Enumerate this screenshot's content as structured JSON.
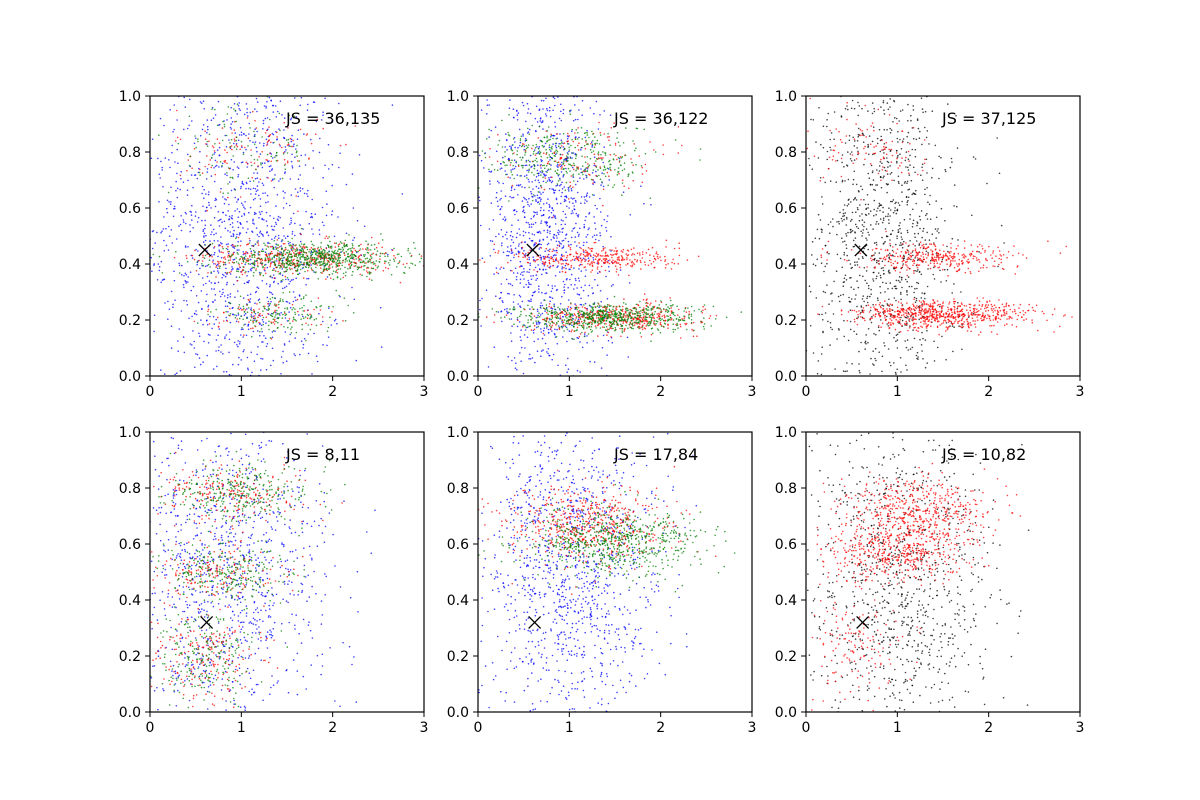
{
  "figure": {
    "background": "#ffffff"
  },
  "chart_data": [
    {
      "type": "scatter",
      "annotation": "JS = 36,135",
      "xlim": [
        0,
        3
      ],
      "ylim": [
        0,
        1
      ],
      "xticks": [
        "0",
        "1",
        "2",
        "3"
      ],
      "yticks": [
        "0.0",
        "0.2",
        "0.4",
        "0.6",
        "0.8",
        "1.0"
      ],
      "marker": {
        "x": 0.6,
        "y": 0.45,
        "symbol": "x",
        "color": "#000000"
      },
      "series": [
        {
          "color": "#0000ff",
          "clusters": [
            {
              "n": 1400,
              "cx": 1.0,
              "cy": 0.5,
              "sx": 0.55,
              "sy": 0.35
            }
          ]
        },
        {
          "color": "#ff0000",
          "clusters": [
            {
              "n": 420,
              "cx": 1.6,
              "cy": 0.42,
              "sx": 0.55,
              "sy": 0.03
            },
            {
              "n": 120,
              "cx": 1.1,
              "cy": 0.8,
              "sx": 0.4,
              "sy": 0.08
            },
            {
              "n": 80,
              "cx": 1.3,
              "cy": 0.22,
              "sx": 0.35,
              "sy": 0.03
            }
          ]
        },
        {
          "color": "#008000",
          "clusters": [
            {
              "n": 700,
              "cx": 1.8,
              "cy": 0.42,
              "sx": 0.55,
              "sy": 0.03
            },
            {
              "n": 160,
              "cx": 1.4,
              "cy": 0.22,
              "sx": 0.35,
              "sy": 0.03
            },
            {
              "n": 100,
              "cx": 1.0,
              "cy": 0.8,
              "sx": 0.4,
              "sy": 0.08
            }
          ]
        }
      ]
    },
    {
      "type": "scatter",
      "annotation": "JS = 36,122",
      "xlim": [
        0,
        3
      ],
      "ylim": [
        0,
        1
      ],
      "xticks": [
        "0",
        "1",
        "2",
        "3"
      ],
      "yticks": [
        "0.0",
        "0.2",
        "0.4",
        "0.6",
        "0.8",
        "1.0"
      ],
      "marker": {
        "x": 0.6,
        "y": 0.45,
        "symbol": "x",
        "color": "#000000"
      },
      "series": [
        {
          "color": "#0000ff",
          "clusters": [
            {
              "n": 1300,
              "cx": 0.75,
              "cy": 0.5,
              "sx": 0.35,
              "sy": 0.32
            }
          ]
        },
        {
          "color": "#ff0000",
          "clusters": [
            {
              "n": 450,
              "cx": 1.5,
              "cy": 0.21,
              "sx": 0.45,
              "sy": 0.025
            },
            {
              "n": 350,
              "cx": 1.3,
              "cy": 0.42,
              "sx": 0.45,
              "sy": 0.025
            },
            {
              "n": 140,
              "cx": 1.1,
              "cy": 0.78,
              "sx": 0.4,
              "sy": 0.06
            }
          ]
        },
        {
          "color": "#008000",
          "clusters": [
            {
              "n": 650,
              "cx": 1.4,
              "cy": 0.21,
              "sx": 0.5,
              "sy": 0.025
            },
            {
              "n": 350,
              "cx": 1.0,
              "cy": 0.78,
              "sx": 0.45,
              "sy": 0.06
            }
          ]
        }
      ]
    },
    {
      "type": "scatter",
      "annotation": "JS = 37,125",
      "xlim": [
        0,
        3
      ],
      "ylim": [
        0,
        1
      ],
      "xticks": [
        "0",
        "1",
        "2",
        "3"
      ],
      "yticks": [
        "0.0",
        "0.2",
        "0.4",
        "0.6",
        "0.8",
        "1.0"
      ],
      "marker": {
        "x": 0.6,
        "y": 0.45,
        "symbol": "x",
        "color": "#000000"
      },
      "series": [
        {
          "color": "#000000",
          "clusters": [
            {
              "n": 1100,
              "cx": 0.85,
              "cy": 0.5,
              "sx": 0.4,
              "sy": 0.32
            }
          ]
        },
        {
          "color": "#ff0000",
          "clusters": [
            {
              "n": 700,
              "cx": 1.5,
              "cy": 0.22,
              "sx": 0.5,
              "sy": 0.025
            },
            {
              "n": 350,
              "cx": 1.4,
              "cy": 0.42,
              "sx": 0.45,
              "sy": 0.025
            },
            {
              "n": 100,
              "cx": 0.8,
              "cy": 0.8,
              "sx": 0.35,
              "sy": 0.06
            }
          ]
        }
      ]
    },
    {
      "type": "scatter",
      "annotation": "JS = 8,11",
      "xlim": [
        0,
        3
      ],
      "ylim": [
        0,
        1
      ],
      "xticks": [
        "0",
        "1",
        "2",
        "3"
      ],
      "yticks": [
        "0.0",
        "0.2",
        "0.4",
        "0.6",
        "0.8",
        "1.0"
      ],
      "marker": {
        "x": 0.62,
        "y": 0.32,
        "symbol": "x",
        "color": "#000000"
      },
      "series": [
        {
          "color": "#0000ff",
          "clusters": [
            {
              "n": 1100,
              "cx": 0.85,
              "cy": 0.5,
              "sx": 0.55,
              "sy": 0.32
            }
          ]
        },
        {
          "color": "#ff0000",
          "clusters": [
            {
              "n": 220,
              "cx": 0.9,
              "cy": 0.78,
              "sx": 0.4,
              "sy": 0.05
            },
            {
              "n": 180,
              "cx": 0.7,
              "cy": 0.5,
              "sx": 0.35,
              "sy": 0.05
            },
            {
              "n": 200,
              "cx": 0.6,
              "cy": 0.2,
              "sx": 0.3,
              "sy": 0.08
            }
          ]
        },
        {
          "color": "#008000",
          "clusters": [
            {
              "n": 300,
              "cx": 1.0,
              "cy": 0.78,
              "sx": 0.4,
              "sy": 0.05
            },
            {
              "n": 250,
              "cx": 0.8,
              "cy": 0.5,
              "sx": 0.35,
              "sy": 0.05
            },
            {
              "n": 220,
              "cx": 0.6,
              "cy": 0.2,
              "sx": 0.3,
              "sy": 0.08
            }
          ]
        }
      ]
    },
    {
      "type": "scatter",
      "annotation": "JS = 17,84",
      "xlim": [
        0,
        3
      ],
      "ylim": [
        0,
        1
      ],
      "xticks": [
        "0",
        "1",
        "2",
        "3"
      ],
      "yticks": [
        "0.0",
        "0.2",
        "0.4",
        "0.6",
        "0.8",
        "1.0"
      ],
      "marker": {
        "x": 0.62,
        "y": 0.32,
        "symbol": "x",
        "color": "#000000"
      },
      "series": [
        {
          "color": "#0000ff",
          "clusters": [
            {
              "n": 1200,
              "cx": 1.0,
              "cy": 0.5,
              "sx": 0.5,
              "sy": 0.3
            }
          ]
        },
        {
          "color": "#ff0000",
          "clusters": [
            {
              "n": 550,
              "cx": 1.2,
              "cy": 0.66,
              "sx": 0.45,
              "sy": 0.07
            }
          ]
        },
        {
          "color": "#008000",
          "clusters": [
            {
              "n": 650,
              "cx": 1.5,
              "cy": 0.61,
              "sx": 0.5,
              "sy": 0.06
            }
          ]
        }
      ]
    },
    {
      "type": "scatter",
      "annotation": "JS = 10,82",
      "xlim": [
        0,
        3
      ],
      "ylim": [
        0,
        1
      ],
      "xticks": [
        "0",
        "1",
        "2",
        "3"
      ],
      "yticks": [
        "0.0",
        "0.2",
        "0.4",
        "0.6",
        "0.8",
        "1.0"
      ],
      "marker": {
        "x": 0.62,
        "y": 0.32,
        "symbol": "x",
        "color": "#000000"
      },
      "series": [
        {
          "color": "#000000",
          "clusters": [
            {
              "n": 1000,
              "cx": 1.05,
              "cy": 0.45,
              "sx": 0.5,
              "sy": 0.3
            }
          ]
        },
        {
          "color": "#ff0000",
          "clusters": [
            {
              "n": 500,
              "cx": 1.2,
              "cy": 0.72,
              "sx": 0.4,
              "sy": 0.06
            },
            {
              "n": 450,
              "cx": 1.0,
              "cy": 0.57,
              "sx": 0.4,
              "sy": 0.05
            },
            {
              "n": 150,
              "cx": 0.6,
              "cy": 0.25,
              "sx": 0.3,
              "sy": 0.1
            }
          ]
        }
      ]
    }
  ]
}
